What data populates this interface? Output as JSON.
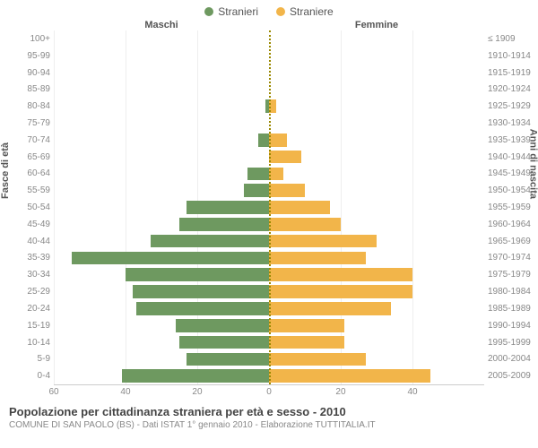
{
  "legend": {
    "male": {
      "label": "Stranieri",
      "color": "#6e9960"
    },
    "female": {
      "label": "Straniere",
      "color": "#f2b54a"
    }
  },
  "headers": {
    "male_col": "Maschi",
    "female_col": "Femmine",
    "left_axis": "Fasce di età",
    "right_axis": "Anni di nascita"
  },
  "chart": {
    "type": "population-pyramid",
    "x_max": 60,
    "x_ticks": [
      60,
      40,
      20,
      0,
      20,
      40
    ],
    "bar_male_color": "#6e9960",
    "bar_female_color": "#f2b54a",
    "grid_color": "#eeeeee",
    "centerline_color": "#998800",
    "background": "#ffffff",
    "label_fontsize": 10,
    "rows": [
      {
        "age": "100+",
        "year": "≤ 1909",
        "m": 0,
        "f": 0
      },
      {
        "age": "95-99",
        "year": "1910-1914",
        "m": 0,
        "f": 0
      },
      {
        "age": "90-94",
        "year": "1915-1919",
        "m": 0,
        "f": 0
      },
      {
        "age": "85-89",
        "year": "1920-1924",
        "m": 0,
        "f": 0
      },
      {
        "age": "80-84",
        "year": "1925-1929",
        "m": 1,
        "f": 2
      },
      {
        "age": "75-79",
        "year": "1930-1934",
        "m": 0,
        "f": 0
      },
      {
        "age": "70-74",
        "year": "1935-1939",
        "m": 3,
        "f": 5
      },
      {
        "age": "65-69",
        "year": "1940-1944",
        "m": 0,
        "f": 9
      },
      {
        "age": "60-64",
        "year": "1945-1949",
        "m": 6,
        "f": 4
      },
      {
        "age": "55-59",
        "year": "1950-1954",
        "m": 7,
        "f": 10
      },
      {
        "age": "50-54",
        "year": "1955-1959",
        "m": 23,
        "f": 17
      },
      {
        "age": "45-49",
        "year": "1960-1964",
        "m": 25,
        "f": 20
      },
      {
        "age": "40-44",
        "year": "1965-1969",
        "m": 33,
        "f": 30
      },
      {
        "age": "35-39",
        "year": "1970-1974",
        "m": 55,
        "f": 27
      },
      {
        "age": "30-34",
        "year": "1975-1979",
        "m": 40,
        "f": 40
      },
      {
        "age": "25-29",
        "year": "1980-1984",
        "m": 38,
        "f": 40
      },
      {
        "age": "20-24",
        "year": "1985-1989",
        "m": 37,
        "f": 34
      },
      {
        "age": "15-19",
        "year": "1990-1994",
        "m": 26,
        "f": 21
      },
      {
        "age": "10-14",
        "year": "1995-1999",
        "m": 25,
        "f": 21
      },
      {
        "age": "5-9",
        "year": "2000-2004",
        "m": 23,
        "f": 27
      },
      {
        "age": "0-4",
        "year": "2005-2009",
        "m": 41,
        "f": 45
      }
    ]
  },
  "footer": {
    "title": "Popolazione per cittadinanza straniera per età e sesso - 2010",
    "subtitle": "COMUNE DI SAN PAOLO (BS) - Dati ISTAT 1° gennaio 2010 - Elaborazione TUTTITALIA.IT"
  }
}
